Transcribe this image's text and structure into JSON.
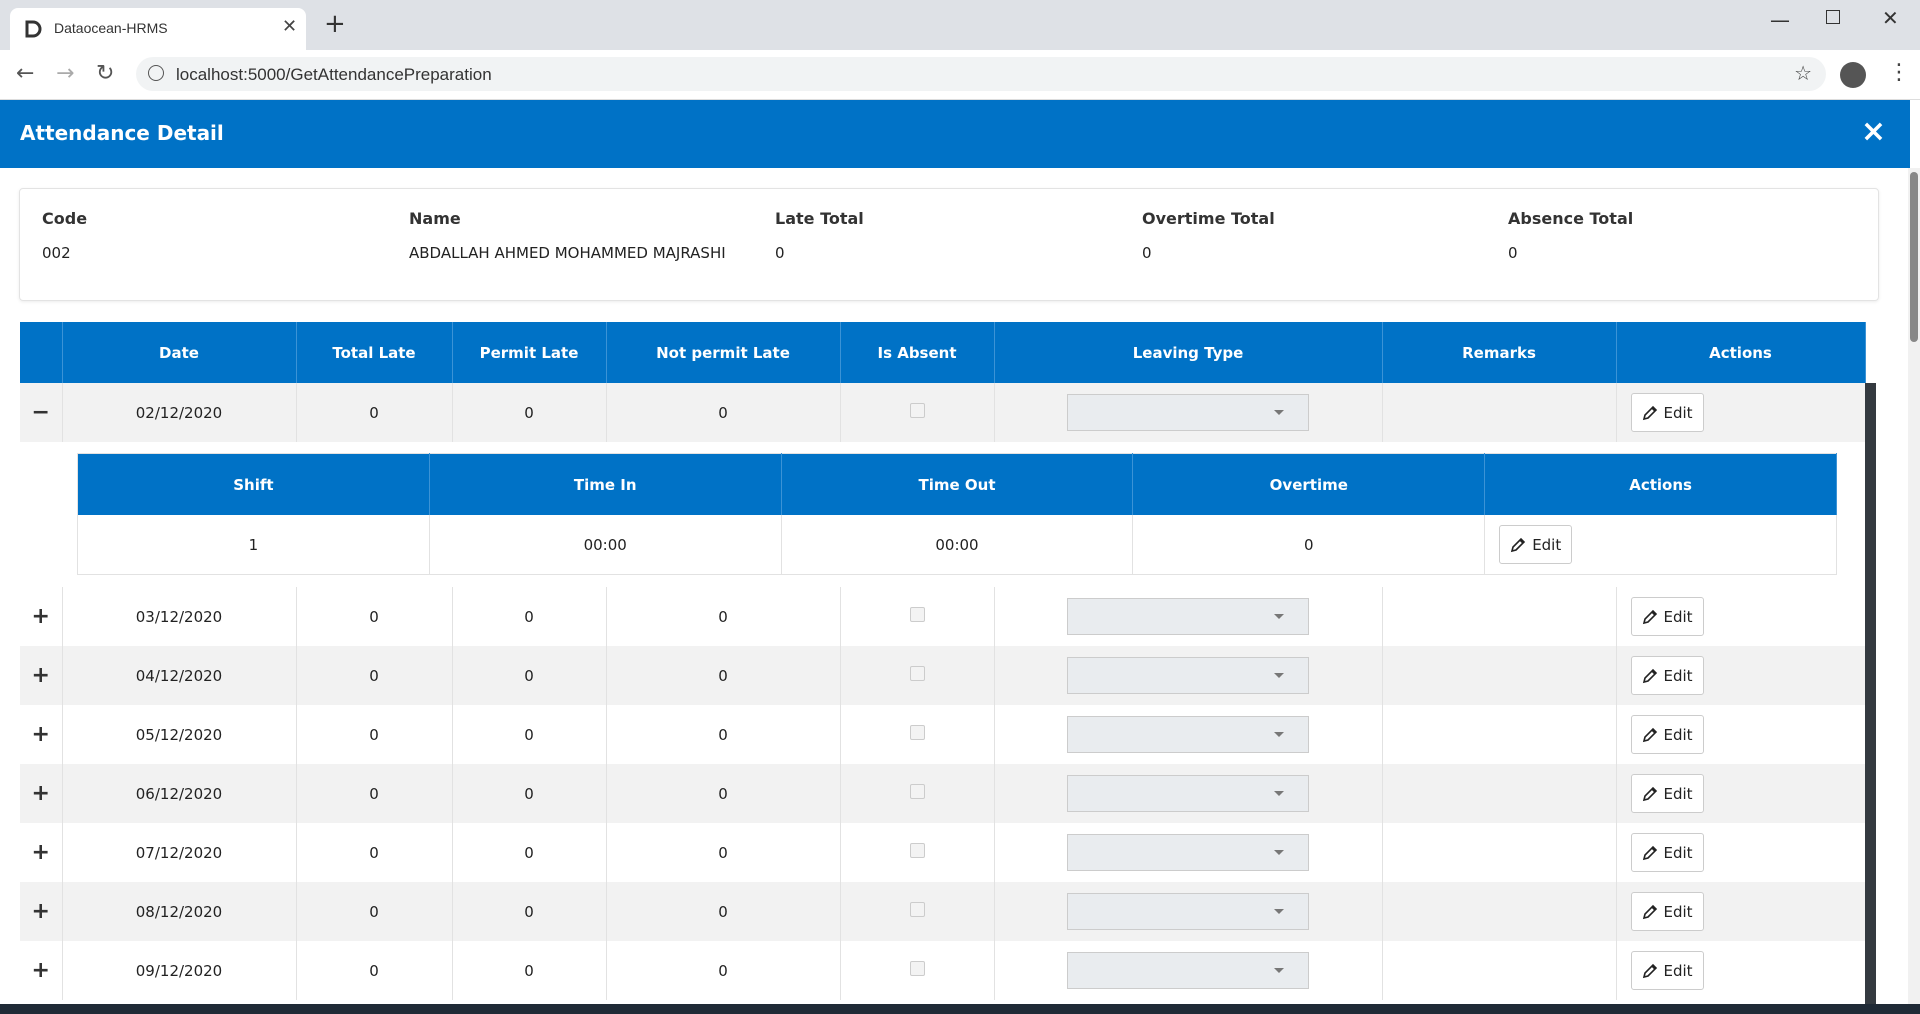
{
  "browser": {
    "tab_title": "Dataocean-HRMS",
    "url": "localhost:5000/GetAttendancePreparation"
  },
  "modal": {
    "title": "Attendance Detail"
  },
  "summary": {
    "fields": [
      {
        "label": "Code",
        "value": "002"
      },
      {
        "label": "Name",
        "value": "ABDALLAH AHMED MOHAMMED MAJRASHI"
      },
      {
        "label": "Late Total",
        "value": 0
      },
      {
        "label": "Overtime Total",
        "value": 0
      },
      {
        "label": "Absence Total",
        "value": 0
      }
    ]
  },
  "edit_button": "Edit",
  "table": {
    "headers": [
      "Date",
      "Total Late",
      "Permit Late",
      "Not permit Late",
      "Is Absent",
      "Leaving Type",
      "Remarks",
      "Actions"
    ],
    "rows": [
      [
        "02/12/2020",
        0,
        0,
        0
      ],
      [
        "03/12/2020",
        0,
        0,
        0
      ],
      [
        "04/12/2020",
        0,
        0,
        0
      ],
      [
        "05/12/2020",
        0,
        0,
        0
      ],
      [
        "06/12/2020",
        0,
        0,
        0
      ],
      [
        "07/12/2020",
        0,
        0,
        0
      ],
      [
        "08/12/2020",
        0,
        0,
        0
      ],
      [
        "09/12/2020",
        0,
        0,
        0
      ]
    ]
  },
  "detail": {
    "headers": [
      "Shift",
      "Time In",
      "Time Out",
      "Overtime",
      "Actions"
    ],
    "rows": [
      [
        1,
        "00:00",
        "00:00",
        0
      ]
    ]
  }
}
